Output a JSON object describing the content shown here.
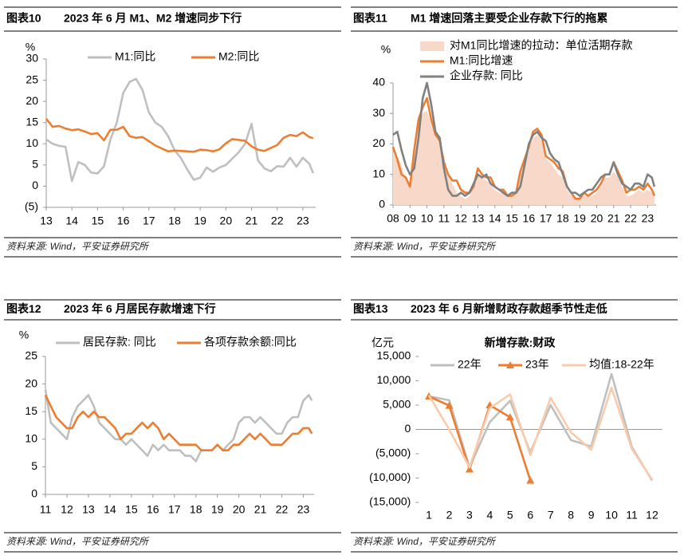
{
  "chart_data": [
    {
      "type": "line",
      "figure_label": "图表10",
      "title": "2023 年 6 月 M1、M2 增速同步下行",
      "source": "资料来源: Wind，平安证券研究所",
      "y_label": "%",
      "x": [
        13,
        13.25,
        13.5,
        13.75,
        14,
        14.25,
        14.5,
        14.75,
        15,
        15.25,
        15.5,
        15.75,
        16,
        16.25,
        16.5,
        16.75,
        17,
        17.25,
        17.5,
        17.75,
        18,
        18.25,
        18.5,
        18.75,
        19,
        19.25,
        19.5,
        19.75,
        20,
        20.25,
        20.5,
        20.75,
        21,
        21.25,
        21.5,
        21.75,
        22,
        22.25,
        22.5,
        22.75,
        23,
        23.25,
        23.4
      ],
      "xlim": [
        13,
        23.5
      ],
      "xticks": [
        13,
        14,
        15,
        16,
        17,
        18,
        19,
        20,
        21,
        22,
        23
      ],
      "ylim": [
        -5,
        30
      ],
      "yticks": [
        {
          "value": -5,
          "label": "(5)"
        },
        0,
        5,
        10,
        15,
        20,
        25,
        30
      ],
      "negative_tick_color": "#ff0000",
      "legend": "top",
      "series": [
        {
          "name": "M1:同比",
          "color": "#bfbfbf",
          "values": [
            11,
            10,
            9.5,
            9.3,
            1.2,
            5.7,
            5,
            3.2,
            3,
            4.7,
            11,
            15,
            22,
            24.6,
            25.3,
            22.7,
            17.4,
            15,
            14,
            11.8,
            8.5,
            6.6,
            3.9,
            1.5,
            2,
            4.4,
            3.4,
            4.4,
            5,
            6.5,
            8,
            10,
            14.7,
            6.1,
            4.2,
            3.5,
            4.7,
            4.6,
            6.7,
            4.6,
            6.7,
            5.3,
            3.1
          ]
        },
        {
          "name": "M2:同比",
          "color": "#ed7d31",
          "values": [
            15.9,
            14,
            14.2,
            13.6,
            13.2,
            13.4,
            12.9,
            12.3,
            12.5,
            10.8,
            13.3,
            13.3,
            14,
            11.8,
            11.4,
            11.6,
            10.6,
            9.6,
            8.9,
            8.2,
            8.4,
            8.3,
            8.2,
            8.1,
            8.6,
            8.5,
            8.2,
            8.7,
            10.1,
            11.1,
            10.9,
            10.7,
            9.4,
            8.6,
            8.3,
            9,
            9.7,
            11.4,
            12.1,
            11.8,
            12.7,
            11.6,
            11.3
          ]
        }
      ]
    },
    {
      "type": "line",
      "figure_label": "图表11",
      "title": "M1 增速回落主要受企业存款下行的拖累",
      "source": "资料来源: Wind，平安证券研究所",
      "y_label": "%",
      "x": [
        8,
        8.25,
        8.5,
        8.75,
        9,
        9.25,
        9.5,
        9.75,
        10,
        10.25,
        10.5,
        10.75,
        11,
        11.25,
        11.5,
        11.75,
        12,
        12.25,
        12.5,
        12.75,
        13,
        13.25,
        13.5,
        13.75,
        14,
        14.25,
        14.5,
        14.75,
        15,
        15.25,
        15.5,
        15.75,
        16,
        16.25,
        16.5,
        16.75,
        17,
        17.25,
        17.5,
        17.75,
        18,
        18.25,
        18.5,
        18.75,
        19,
        19.25,
        19.5,
        19.75,
        20,
        20.25,
        20.5,
        20.75,
        21,
        21.25,
        21.5,
        21.75,
        22,
        22.25,
        22.5,
        22.75,
        23,
        23.25,
        23.4
      ],
      "xlim": [
        8,
        23.5
      ],
      "xticks": [
        {
          "value": 8,
          "label": "08"
        },
        {
          "value": 9,
          "label": "09"
        },
        10,
        11,
        12,
        13,
        14,
        15,
        16,
        17,
        18,
        19,
        20,
        21,
        22,
        23
      ],
      "ylim": [
        0,
        40
      ],
      "yticks": [
        0,
        10,
        20,
        30,
        40
      ],
      "legend": "top-right",
      "series": [
        {
          "name": "对M1同比增速的拉动：单位活期存款",
          "color": "#f8d9c9",
          "style": "area",
          "values": [
            17,
            16,
            13,
            8,
            7,
            12,
            24,
            30,
            31,
            26,
            22,
            20,
            12,
            10,
            7,
            4,
            3,
            2,
            3,
            6,
            10,
            9,
            8,
            7,
            5,
            4,
            4,
            3,
            3,
            4,
            10,
            14,
            18,
            22,
            23,
            21,
            15,
            14,
            12,
            10,
            9,
            5,
            3,
            2,
            2,
            3,
            3,
            3,
            4,
            6,
            9,
            9,
            11,
            9,
            6,
            3,
            3,
            4,
            5,
            4,
            5,
            4,
            3
          ]
        },
        {
          "name": "M1:同比增速",
          "color": "#ed7d31",
          "values": [
            19,
            15,
            10,
            9,
            6,
            18,
            28,
            32,
            35,
            28,
            23,
            21,
            14,
            10,
            8,
            8,
            5,
            4,
            4,
            6,
            12,
            10,
            9,
            9,
            6,
            5,
            5,
            3,
            3,
            4,
            11,
            15,
            19,
            24,
            25,
            23,
            16,
            15,
            14,
            12,
            11,
            6,
            4,
            2,
            2,
            4,
            3,
            4,
            5,
            7,
            10,
            10,
            14,
            11,
            8,
            4,
            5,
            5,
            6,
            5,
            7,
            5,
            3
          ]
        },
        {
          "name": "企业存款: 同比",
          "color": "#808080",
          "values": [
            23,
            24,
            18,
            13,
            10,
            12,
            22,
            35,
            40,
            33,
            24,
            22,
            12,
            5,
            3,
            3,
            4,
            3,
            4,
            7,
            10,
            9,
            10,
            7,
            6,
            5,
            4,
            3,
            4,
            4,
            6,
            13,
            20,
            23,
            24,
            22,
            21,
            17,
            15,
            14,
            10,
            6,
            4,
            4,
            3,
            4,
            5,
            5,
            7,
            9,
            10,
            10,
            14,
            10,
            7,
            6,
            5,
            7,
            7,
            6,
            10,
            9,
            6
          ]
        }
      ]
    },
    {
      "type": "line",
      "figure_label": "图表12",
      "title": "2023 年 6 月居民存款增速下行",
      "source": "资料来源: Wind，平安证券研究所",
      "y_label": "%",
      "x": [
        11,
        11.25,
        11.5,
        11.75,
        12,
        12.25,
        12.5,
        12.75,
        13,
        13.25,
        13.5,
        13.75,
        14,
        14.25,
        14.5,
        14.75,
        15,
        15.25,
        15.5,
        15.75,
        16,
        16.25,
        16.5,
        16.75,
        17,
        17.25,
        17.5,
        17.75,
        18,
        18.25,
        18.5,
        18.75,
        19,
        19.25,
        19.5,
        19.75,
        20,
        20.25,
        20.5,
        20.75,
        21,
        21.25,
        21.5,
        21.75,
        22,
        22.25,
        22.5,
        22.75,
        23,
        23.25,
        23.4
      ],
      "xlim": [
        11,
        23.5
      ],
      "xticks": [
        11,
        12,
        13,
        14,
        15,
        16,
        17,
        18,
        19,
        20,
        21,
        22,
        23
      ],
      "ylim": [
        0,
        25
      ],
      "yticks": [
        0,
        5,
        10,
        15,
        20,
        25
      ],
      "legend": "top",
      "series": [
        {
          "name": "居民存款: 同比",
          "color": "#bfbfbf",
          "values": [
            19,
            13,
            12,
            11,
            10,
            14,
            16,
            17,
            18,
            16,
            13,
            12,
            11,
            10,
            10,
            9,
            10,
            9,
            8,
            7,
            9,
            8,
            9,
            8,
            8,
            8,
            7,
            7,
            6,
            8,
            8,
            8,
            9,
            8,
            9,
            10,
            13,
            14,
            14,
            13,
            14,
            13,
            12,
            11,
            11,
            13,
            14,
            14,
            17,
            18,
            17
          ]
        },
        {
          "name": "各项存款余额:同比",
          "color": "#ed7d31",
          "values": [
            18,
            16,
            14,
            13,
            12,
            12,
            14,
            15,
            14,
            15,
            14,
            14,
            13,
            12,
            10,
            11,
            11,
            12,
            13,
            12,
            13,
            12,
            10,
            11,
            10,
            9,
            9,
            9,
            9,
            8,
            8,
            8,
            9,
            8,
            8,
            9,
            9,
            10,
            11,
            10,
            11,
            10,
            9,
            9,
            9,
            10,
            11,
            11,
            12,
            12,
            11
          ]
        }
      ]
    },
    {
      "type": "line",
      "figure_label": "图表13",
      "title": "2023 年 6 月新增财政存款超季节性走低",
      "source": "资料来源: Wind，平安证券研究所",
      "y_label": "亿元",
      "plot_title": "新增存款:财政",
      "categories": [
        "1",
        "2",
        "3",
        "4",
        "5",
        "6",
        "7",
        "8",
        "9",
        "10",
        "11",
        "12"
      ],
      "ylim": [
        -15000,
        15000
      ],
      "yticks": [
        {
          "value": -15000,
          "label": "(15,000)"
        },
        {
          "value": -10000,
          "label": "(10,000)"
        },
        {
          "value": -5000,
          "label": "(5,000)"
        },
        0,
        {
          "value": 5000,
          "label": "5,000"
        },
        {
          "value": 10000,
          "label": "10,000"
        },
        {
          "value": 15000,
          "label": "15,000"
        }
      ],
      "negative_tick_color": "#ff0000",
      "legend": "top",
      "series": [
        {
          "name": "22年",
          "color": "#bfbfbf",
          "values": [
            6800,
            6000,
            -7800,
            1500,
            5900,
            -4700,
            5000,
            -2200,
            -3500,
            11400,
            -3600,
            -10500
          ]
        },
        {
          "name": "23年",
          "color": "#ed7d31",
          "marker": "triangle",
          "values": [
            6800,
            4900,
            -8200,
            5000,
            2500,
            -10500,
            null,
            null,
            null,
            null,
            null,
            null
          ]
        },
        {
          "name": "均值:18-22年",
          "color": "#f8cbad",
          "values": [
            7000,
            0,
            -7800,
            4400,
            7200,
            -5300,
            6500,
            -600,
            -4200,
            8600,
            -4000,
            -10300
          ]
        }
      ]
    }
  ]
}
